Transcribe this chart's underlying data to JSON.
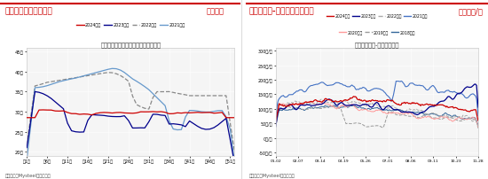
{
  "left_title_main": "图：饲料企业库存天数",
  "left_title_unit": "单位：天",
  "left_subtitle": "饲料企业：库存可用天数：中国（周）",
  "left_source": "资料来源：Mysteel，长天期货",
  "left_legend": [
    "2024年度",
    "2023年度",
    "2022年度",
    "2021年度"
  ],
  "left_legend_colors": [
    "#cc0000",
    "#00008b",
    "#888888",
    "#6699cc"
  ],
  "left_legend_styles": [
    "solid",
    "solid",
    "dashed",
    "solid"
  ],
  "left_xticks": [
    "第1周",
    "第6周",
    "第11周",
    "第16周",
    "第21周",
    "第26周",
    "第31周",
    "第36周",
    "第41周",
    "第46周",
    "第51周"
  ],
  "left_yticks": [
    "20天",
    "25天",
    "30天",
    "35天",
    "40天",
    "45天"
  ],
  "left_ylim": [
    19,
    46
  ],
  "right_title_main": "图：蛇口港-东北港口玉米价差",
  "right_title_unit": "单位：元/吨",
  "right_subtitle": "蛇口港市场价-锦州港平仓价",
  "right_source": "资料来源：Mysteel，长天期货",
  "right_legend_row1": [
    "2024年度",
    "2023年度",
    "2022年度",
    "2021年度"
  ],
  "right_legend_row2": [
    "2020年度",
    "2019年度",
    "2018年度"
  ],
  "right_legend_colors": [
    "#cc0000",
    "#00008b",
    "#aaaaaa",
    "#4472c4",
    "#ff9999",
    "#999999",
    "#336699"
  ],
  "right_legend_styles": [
    "solid",
    "solid",
    "dashed",
    "solid",
    "solid",
    "dashed",
    "solid"
  ],
  "right_xticks": [
    "01-02",
    "02-07",
    "03-14",
    "04-19",
    "05-26",
    "07-01",
    "08-06",
    "09-11",
    "10-23",
    "11-28"
  ],
  "right_yticks": [
    "-50元/吨",
    "0元/吨",
    "50元/吨",
    "100元/吨",
    "150元/吨",
    "200元/吨",
    "250元/吨",
    "300元/吨"
  ],
  "right_ylim": [
    -60,
    310
  ],
  "header_text_color": "#cc0000",
  "header_bg": "#ffffff",
  "plot_bg": "#f5f5f5"
}
